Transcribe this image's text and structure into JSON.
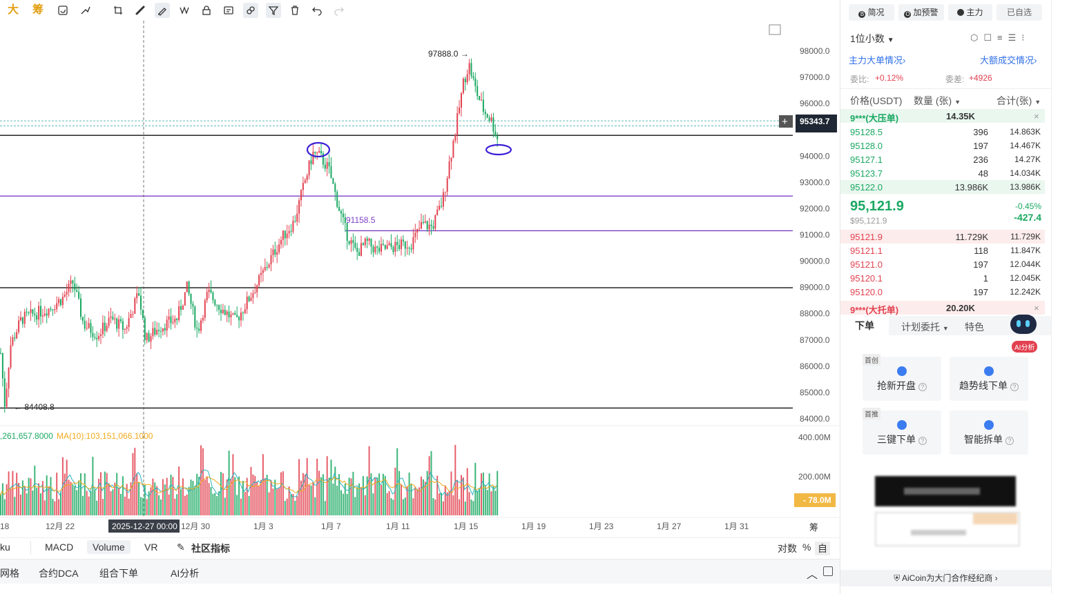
{
  "toolbar": {
    "label_big": "大",
    "label_chip": "筹"
  },
  "chart": {
    "price_labels": [
      "98000.0",
      "97000.0",
      "96000.0",
      "95000.0",
      "94000.0",
      "93000.0",
      "92000.0",
      "91000.0",
      "90000.0",
      "89000.0",
      "88000.0",
      "87000.0",
      "86000.0",
      "85000.0",
      "84000.0"
    ],
    "date_labels": [
      "18",
      "12月 22",
      "12月 30",
      "1月 3",
      "1月 7",
      "1月 11",
      "1月 15",
      "1月 19",
      "1月 23",
      "1月 27",
      "1月 31"
    ],
    "crosshair_date": "2025-12-27 00:00",
    "current_price_tag": "95343.7",
    "high_label": "97888.0",
    "low_label": "84408.8",
    "mid_label": "91158.5",
    "vol_axis": [
      "400.00M",
      "200.00M"
    ],
    "vol_current": "78.0M",
    "ma_text_1": ",261,657.8000",
    "ma_text_2": "MA(10):103,151,066.1000",
    "right_edge_char": "筹",
    "colors": {
      "up": "#e2414f",
      "down": "#19a861",
      "purple": "#7b3fc6",
      "marker": "#3a1fd6"
    }
  },
  "indicators": {
    "items": [
      "ku",
      "MACD",
      "Volume",
      "VR",
      "社区指标"
    ],
    "right": [
      "对数",
      "%",
      "自"
    ]
  },
  "bottom": {
    "items": [
      "网格",
      "合约DCA",
      "组合下单",
      "AI分析"
    ]
  },
  "right_panel": {
    "tabs": [
      "简况",
      "加预警",
      "主力",
      "已自选"
    ],
    "precision": "1位小数",
    "link_left": "主力大单情况",
    "link_right": "大额成交情况",
    "ratio_label": "委比:",
    "ratio_value": "+0.12%",
    "diff_label": "委差:",
    "diff_value": "+4926",
    "col_price": "价格(USDT)",
    "col_qty": "数量 (张)",
    "col_total": "合计(张)",
    "big_ask_label": "9***(大压单)",
    "big_ask_value": "14.35K",
    "asks": [
      {
        "price": "95128.5",
        "qty": "396",
        "total": "14.863K"
      },
      {
        "price": "95128.0",
        "qty": "197",
        "total": "14.467K"
      },
      {
        "price": "95127.1",
        "qty": "236",
        "total": "14.27K"
      },
      {
        "price": "95123.7",
        "qty": "48",
        "total": "14.034K"
      },
      {
        "price": "95122.0",
        "qty": "13.986K",
        "total": "13.986K"
      }
    ],
    "last_price": "95,121.9",
    "last_price_usd": "$95,121.9",
    "change_pct": "-0.45%",
    "change_abs": "-427.4",
    "bids": [
      {
        "price": "95121.9",
        "qty": "11.729K",
        "total": "11.729K"
      },
      {
        "price": "95121.1",
        "qty": "118",
        "total": "11.847K"
      },
      {
        "price": "95121.0",
        "qty": "197",
        "total": "12.044K"
      },
      {
        "price": "95120.1",
        "qty": "1",
        "total": "12.045K"
      },
      {
        "price": "95120.0",
        "qty": "197",
        "total": "12.242K"
      }
    ],
    "big_bid_label": "9***(大托单)",
    "big_bid_value": "20.20K",
    "order_tabs": [
      "下单",
      "计划委托",
      "特色"
    ],
    "ai_badge": "AI分析",
    "cards": [
      {
        "badge": "首创",
        "label": "抢新开盘"
      },
      {
        "badge": "",
        "label": "趋势线下单"
      },
      {
        "badge": "首推",
        "label": "三键下单"
      },
      {
        "badge": "",
        "label": "智能拆单"
      }
    ],
    "footer": "AiCoin为大门合作经纪商"
  }
}
